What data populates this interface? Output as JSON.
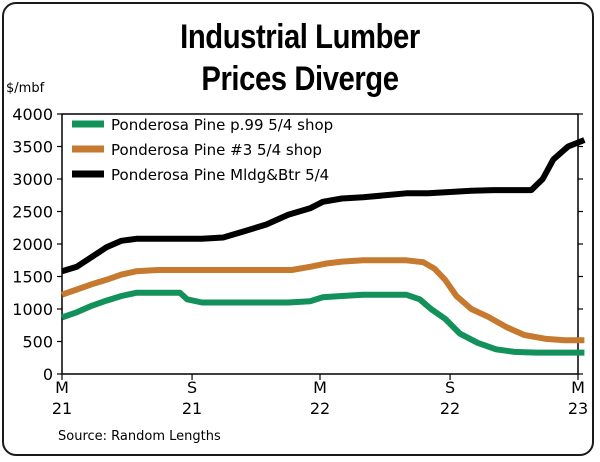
{
  "chart_data": {
    "type": "line",
    "title": "Industrial Lumber",
    "subtitle": "Prices Diverge",
    "ylabel": "$/mbf",
    "xlabel": "",
    "ylim": [
      0,
      4000
    ],
    "yticks": [
      0,
      500,
      1000,
      1500,
      2000,
      2500,
      3000,
      3500,
      4000
    ],
    "xlim": [
      "2021-03",
      "2023-03"
    ],
    "xticks": [
      {
        "x": "2021-03",
        "line1": "M",
        "line2": "21"
      },
      {
        "x": "2021-09",
        "line1": "S",
        "line2": "21"
      },
      {
        "x": "2022-03",
        "line1": "M",
        "line2": "22"
      },
      {
        "x": "2022-09",
        "line1": "S",
        "line2": "22"
      },
      {
        "x": "2023-03",
        "line1": "M",
        "line2": "23"
      }
    ],
    "grid": false,
    "legend_position": "top-left",
    "series": [
      {
        "name": "Ponderosa Pine p.99 5/4 shop",
        "color": "#12925a",
        "points": [
          [
            "2021-03-01",
            870
          ],
          [
            "2021-03-22",
            950
          ],
          [
            "2021-04-12",
            1050
          ],
          [
            "2021-05-03",
            1130
          ],
          [
            "2021-05-24",
            1200
          ],
          [
            "2021-06-14",
            1250
          ],
          [
            "2021-07-15",
            1250
          ],
          [
            "2021-08-15",
            1250
          ],
          [
            "2021-08-25",
            1150
          ],
          [
            "2021-09-15",
            1100
          ],
          [
            "2021-10-15",
            1100
          ],
          [
            "2021-11-15",
            1100
          ],
          [
            "2021-12-15",
            1100
          ],
          [
            "2022-01-15",
            1100
          ],
          [
            "2022-02-15",
            1120
          ],
          [
            "2022-03-05",
            1180
          ],
          [
            "2022-04-01",
            1200
          ],
          [
            "2022-05-01",
            1220
          ],
          [
            "2022-06-01",
            1220
          ],
          [
            "2022-07-01",
            1220
          ],
          [
            "2022-07-20",
            1150
          ],
          [
            "2022-08-05",
            1000
          ],
          [
            "2022-08-25",
            850
          ],
          [
            "2022-09-15",
            620
          ],
          [
            "2022-10-10",
            480
          ],
          [
            "2022-11-05",
            380
          ],
          [
            "2022-12-01",
            340
          ],
          [
            "2023-01-01",
            330
          ],
          [
            "2023-02-01",
            330
          ],
          [
            "2023-03-10",
            330
          ]
        ]
      },
      {
        "name": "Ponderosa Pine #3 5/4 shop",
        "color": "#c67a2f",
        "points": [
          [
            "2021-03-01",
            1220
          ],
          [
            "2021-03-22",
            1300
          ],
          [
            "2021-04-12",
            1380
          ],
          [
            "2021-05-03",
            1450
          ],
          [
            "2021-05-24",
            1530
          ],
          [
            "2021-06-14",
            1580
          ],
          [
            "2021-07-15",
            1600
          ],
          [
            "2021-09-01",
            1600
          ],
          [
            "2021-10-15",
            1600
          ],
          [
            "2021-12-15",
            1600
          ],
          [
            "2022-01-20",
            1600
          ],
          [
            "2022-02-15",
            1650
          ],
          [
            "2022-03-10",
            1700
          ],
          [
            "2022-04-01",
            1730
          ],
          [
            "2022-05-01",
            1750
          ],
          [
            "2022-06-01",
            1750
          ],
          [
            "2022-07-01",
            1750
          ],
          [
            "2022-07-25",
            1720
          ],
          [
            "2022-08-10",
            1620
          ],
          [
            "2022-08-25",
            1450
          ],
          [
            "2022-09-10",
            1200
          ],
          [
            "2022-10-01",
            1000
          ],
          [
            "2022-10-25",
            880
          ],
          [
            "2022-11-20",
            720
          ],
          [
            "2022-12-15",
            600
          ],
          [
            "2023-01-15",
            540
          ],
          [
            "2023-02-10",
            520
          ],
          [
            "2023-03-10",
            520
          ]
        ]
      },
      {
        "name": "Ponderosa Pine Mldg&Btr 5/4",
        "color": "#000000",
        "points": [
          [
            "2021-03-01",
            1580
          ],
          [
            "2021-03-22",
            1650
          ],
          [
            "2021-04-12",
            1800
          ],
          [
            "2021-05-03",
            1950
          ],
          [
            "2021-05-24",
            2050
          ],
          [
            "2021-06-14",
            2080
          ],
          [
            "2021-07-15",
            2080
          ],
          [
            "2021-08-15",
            2080
          ],
          [
            "2021-09-15",
            2080
          ],
          [
            "2021-10-15",
            2100
          ],
          [
            "2021-11-15",
            2200
          ],
          [
            "2021-12-15",
            2300
          ],
          [
            "2022-01-15",
            2450
          ],
          [
            "2022-02-15",
            2550
          ],
          [
            "2022-03-05",
            2650
          ],
          [
            "2022-04-01",
            2700
          ],
          [
            "2022-05-01",
            2720
          ],
          [
            "2022-06-01",
            2750
          ],
          [
            "2022-07-01",
            2780
          ],
          [
            "2022-08-01",
            2780
          ],
          [
            "2022-09-01",
            2800
          ],
          [
            "2022-10-01",
            2820
          ],
          [
            "2022-11-01",
            2830
          ],
          [
            "2022-12-01",
            2830
          ],
          [
            "2022-12-25",
            2830
          ],
          [
            "2023-01-10",
            3000
          ],
          [
            "2023-01-25",
            3300
          ],
          [
            "2023-02-15",
            3500
          ],
          [
            "2023-03-10",
            3600
          ]
        ]
      }
    ]
  },
  "source": "Source: Random Lengths"
}
